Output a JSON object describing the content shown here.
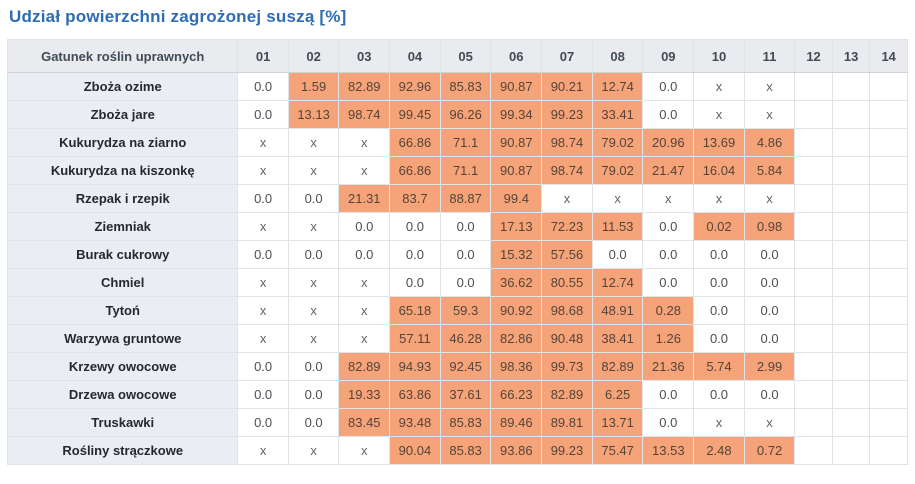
{
  "title": "Udział powierzchni zagrożonej suszą [%]",
  "colors": {
    "title_blue": "#2e6db4",
    "highlight_orange": "#f5a378",
    "header_bg": "#e9ebee",
    "row_label_bg": "#eaeef3"
  },
  "chart_data": {
    "type": "table",
    "title": "Udział powierzchni zagrożonej suszą [%]",
    "row_header": "Gatunek roślin uprawnych",
    "columns": [
      "01",
      "02",
      "03",
      "04",
      "05",
      "06",
      "07",
      "08",
      "09",
      "10",
      "11",
      "12",
      "13",
      "14"
    ],
    "highlight_rule": "cells with numeric value greater than 0 are shaded orange; '0.0', 'x' and empty cells are white",
    "rows": [
      {
        "label": "Zboża ozime",
        "values": [
          "0.0",
          "1.59",
          "82.89",
          "92.96",
          "85.83",
          "90.87",
          "90.21",
          "12.74",
          "0.0",
          "x",
          "x",
          "",
          "",
          ""
        ]
      },
      {
        "label": "Zboża jare",
        "values": [
          "0.0",
          "13.13",
          "98.74",
          "99.45",
          "96.26",
          "99.34",
          "99.23",
          "33.41",
          "0.0",
          "x",
          "x",
          "",
          "",
          ""
        ]
      },
      {
        "label": "Kukurydza na ziarno",
        "values": [
          "x",
          "x",
          "x",
          "66.86",
          "71.1",
          "90.87",
          "98.74",
          "79.02",
          "20.96",
          "13.69",
          "4.86",
          "",
          "",
          ""
        ]
      },
      {
        "label": "Kukurydza na kiszonkę",
        "values": [
          "x",
          "x",
          "x",
          "66.86",
          "71.1",
          "90.87",
          "98.74",
          "79.02",
          "21.47",
          "16.04",
          "5.84",
          "",
          "",
          ""
        ]
      },
      {
        "label": "Rzepak i rzepik",
        "values": [
          "0.0",
          "0.0",
          "21.31",
          "83.7",
          "88.87",
          "99.4",
          "x",
          "x",
          "x",
          "x",
          "x",
          "",
          "",
          ""
        ]
      },
      {
        "label": "Ziemniak",
        "values": [
          "x",
          "x",
          "0.0",
          "0.0",
          "0.0",
          "17.13",
          "72.23",
          "11.53",
          "0.0",
          "0.02",
          "0.98",
          "",
          "",
          ""
        ]
      },
      {
        "label": "Burak cukrowy",
        "values": [
          "0.0",
          "0.0",
          "0.0",
          "0.0",
          "0.0",
          "15.32",
          "57.56",
          "0.0",
          "0.0",
          "0.0",
          "0.0",
          "",
          "",
          ""
        ]
      },
      {
        "label": "Chmiel",
        "values": [
          "x",
          "x",
          "x",
          "0.0",
          "0.0",
          "36.62",
          "80.55",
          "12.74",
          "0.0",
          "0.0",
          "0.0",
          "",
          "",
          ""
        ]
      },
      {
        "label": "Tytoń",
        "values": [
          "x",
          "x",
          "x",
          "65.18",
          "59.3",
          "90.92",
          "98.68",
          "48.91",
          "0.28",
          "0.0",
          "0.0",
          "",
          "",
          ""
        ]
      },
      {
        "label": "Warzywa gruntowe",
        "values": [
          "x",
          "x",
          "x",
          "57.11",
          "46.28",
          "82.86",
          "90.48",
          "38.41",
          "1.26",
          "0.0",
          "0.0",
          "",
          "",
          ""
        ]
      },
      {
        "label": "Krzewy owocowe",
        "values": [
          "0.0",
          "0.0",
          "82.89",
          "94.93",
          "92.45",
          "98.36",
          "99.73",
          "82.89",
          "21.36",
          "5.74",
          "2.99",
          "",
          "",
          ""
        ]
      },
      {
        "label": "Drzewa owocowe",
        "values": [
          "0.0",
          "0.0",
          "19.33",
          "63.86",
          "37.61",
          "66.23",
          "82.89",
          "6.25",
          "0.0",
          "0.0",
          "0.0",
          "",
          "",
          ""
        ]
      },
      {
        "label": "Truskawki",
        "values": [
          "0.0",
          "0.0",
          "83.45",
          "93.48",
          "85.83",
          "89.46",
          "89.81",
          "13.71",
          "0.0",
          "x",
          "x",
          "",
          "",
          ""
        ]
      },
      {
        "label": "Rośliny strączkowe",
        "values": [
          "x",
          "x",
          "x",
          "90.04",
          "85.83",
          "93.86",
          "99.23",
          "75.47",
          "13.53",
          "2.48",
          "0.72",
          "",
          "",
          ""
        ]
      }
    ]
  }
}
